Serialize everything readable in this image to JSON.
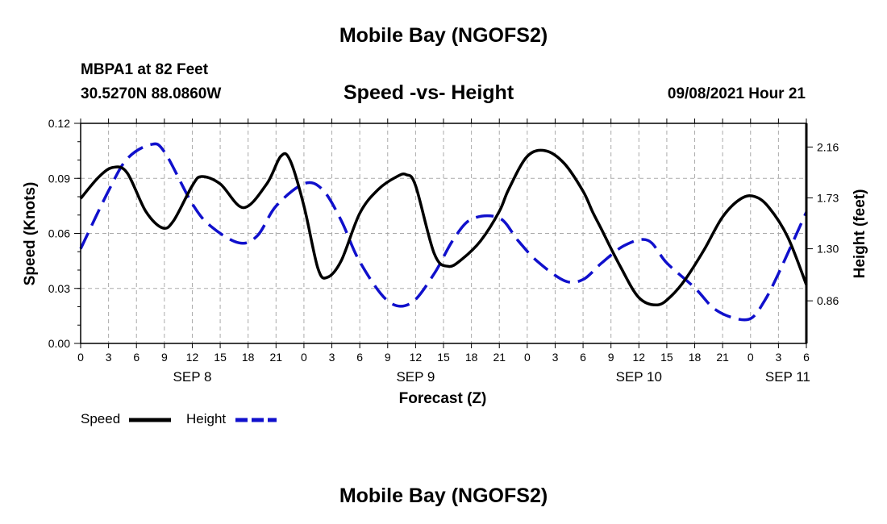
{
  "page": {
    "top_title": "Mobile Bay (NGOFS2)",
    "bottom_title": "Mobile Bay (NGOFS2)",
    "station": "MBPA1 at 82 Feet",
    "coords": "30.5270N  88.0860W",
    "subtitle": "Speed -vs- Height",
    "stamp": "09/08/2021 Hour 21"
  },
  "colors": {
    "speed": "#000000",
    "height": "#1010cc",
    "grid": "#aaaaaa"
  },
  "chart_data": {
    "type": "line",
    "title": "Speed -vs- Height",
    "xlabel": "Forecast (Z)",
    "ylabel": "Speed (Knots)",
    "y2label": "Height (feet)",
    "x_unit": "hours since SEP 8 00Z",
    "xlim": [
      0,
      78
    ],
    "ylim": [
      0,
      0.12
    ],
    "y2lim": [
      0.5,
      2.36
    ],
    "grid": true,
    "x_ticks": [
      0,
      3,
      6,
      9,
      12,
      15,
      18,
      21,
      24,
      27,
      30,
      33,
      36,
      39,
      42,
      45,
      48,
      51,
      54,
      57,
      60,
      63,
      66,
      69,
      72,
      75,
      78
    ],
    "x_tick_labels": [
      "0",
      "3",
      "6",
      "9",
      "12",
      "15",
      "18",
      "21",
      "0",
      "3",
      "6",
      "9",
      "12",
      "15",
      "18",
      "21",
      "0",
      "3",
      "6",
      "9",
      "12",
      "15",
      "18",
      "21",
      "0",
      "3",
      "6"
    ],
    "y_ticks": [
      0.0,
      0.03,
      0.06,
      0.09,
      0.12
    ],
    "y_tick_labels": [
      "0.00",
      "0.03",
      "0.06",
      "0.09",
      "0.12"
    ],
    "y2_ticks": [
      0.86,
      1.3,
      1.73,
      2.16
    ],
    "y2_tick_labels": [
      "0.86",
      "1.30",
      "1.73",
      "2.16"
    ],
    "date_labels": [
      {
        "label": "SEP 8",
        "x": 12
      },
      {
        "label": "SEP 9",
        "x": 36
      },
      {
        "label": "SEP 10",
        "x": 60
      },
      {
        "label": "SEP 11",
        "x": 76
      }
    ],
    "legend": [
      {
        "name": "Speed",
        "style": "solid"
      },
      {
        "name": "Height",
        "style": "dashed"
      }
    ],
    "series": [
      {
        "name": "Speed",
        "axis": "left",
        "style": "solid",
        "x": [
          0,
          2,
          3.5,
          5,
          7,
          8.8,
          10,
          12,
          13,
          15,
          17.5,
          20,
          21.5,
          22.5,
          24,
          25.5,
          26.5,
          28,
          30,
          32,
          34,
          35,
          36,
          38,
          39.5,
          41,
          43,
          45,
          46,
          48,
          50,
          52,
          54,
          55,
          56,
          58,
          60,
          62,
          63.5,
          65,
          67,
          69,
          71,
          72.5,
          74,
          76,
          78
        ],
        "values": [
          0.079,
          0.091,
          0.096,
          0.093,
          0.072,
          0.063,
          0.067,
          0.086,
          0.091,
          0.087,
          0.074,
          0.087,
          0.102,
          0.1,
          0.075,
          0.041,
          0.036,
          0.045,
          0.071,
          0.084,
          0.091,
          0.092,
          0.086,
          0.049,
          0.042,
          0.046,
          0.056,
          0.072,
          0.084,
          0.102,
          0.105,
          0.098,
          0.083,
          0.072,
          0.062,
          0.042,
          0.025,
          0.021,
          0.026,
          0.035,
          0.051,
          0.069,
          0.079,
          0.08,
          0.074,
          0.058,
          0.032
        ]
      },
      {
        "name": "Height",
        "axis": "right",
        "style": "dashed",
        "x": [
          0,
          3,
          5,
          7.5,
          9,
          12,
          14,
          17,
          19,
          21,
          24,
          26,
          28,
          30,
          33,
          35.5,
          38,
          40,
          42,
          45,
          47,
          49,
          52,
          54,
          56,
          58.5,
          61,
          63,
          66,
          68,
          70,
          72,
          73.5,
          75,
          78
        ],
        "values": [
          1.3,
          1.79,
          2.06,
          2.18,
          2.12,
          1.68,
          1.49,
          1.35,
          1.41,
          1.66,
          1.85,
          1.8,
          1.54,
          1.19,
          0.86,
          0.84,
          1.09,
          1.37,
          1.55,
          1.56,
          1.37,
          1.2,
          1.03,
          1.04,
          1.18,
          1.33,
          1.37,
          1.18,
          0.97,
          0.8,
          0.72,
          0.71,
          0.86,
          1.09,
          1.61
        ]
      }
    ]
  }
}
